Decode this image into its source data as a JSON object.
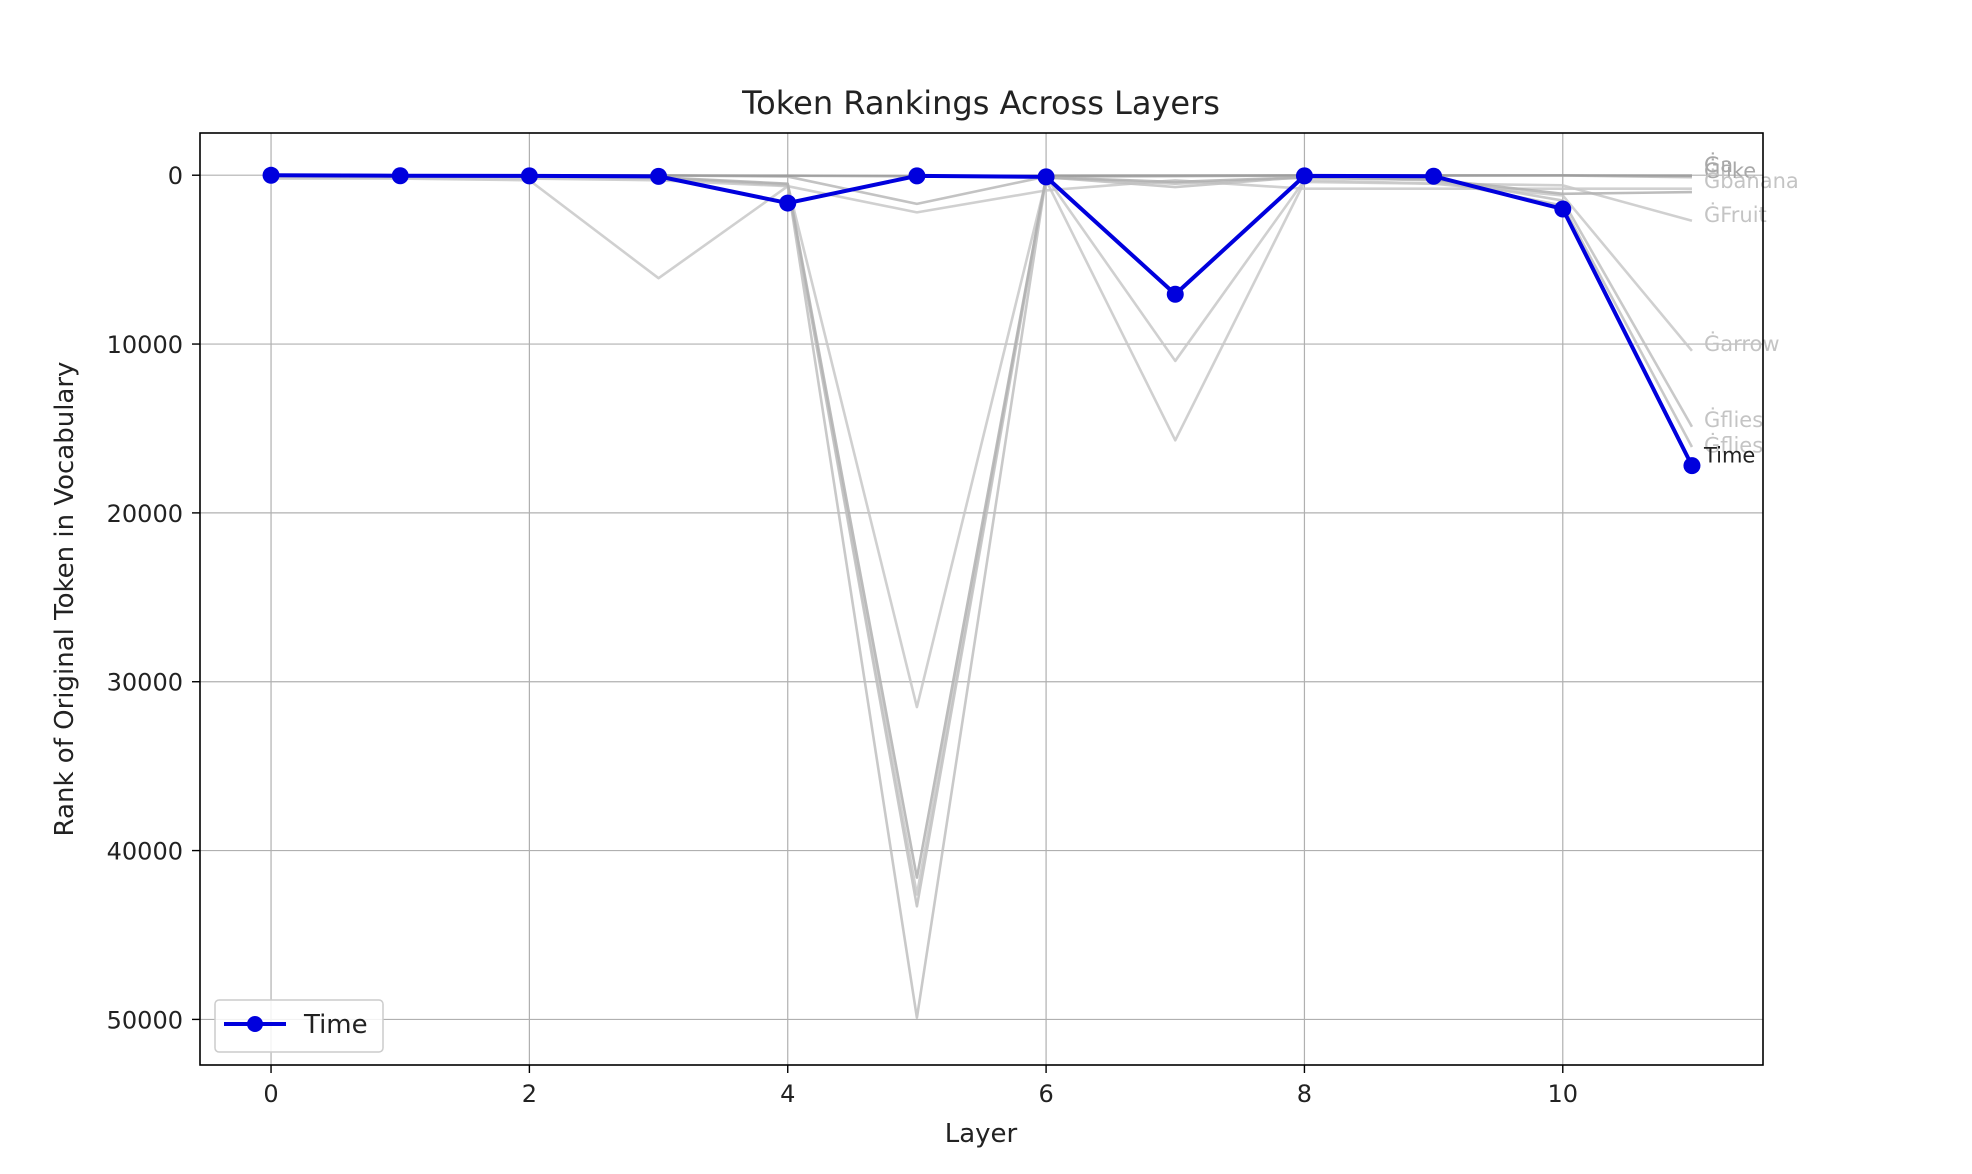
{
  "chart_data": {
    "type": "line",
    "title": "Token Rankings Across Layers",
    "xlabel": "Layer",
    "ylabel": "Rank of Original Token in Vocabulary",
    "xlim": [
      -0.55,
      11.55
    ],
    "ylim": [
      52700,
      -2500
    ],
    "y_inverted": true,
    "grid": true,
    "legend_position": "lower-left",
    "x_ticks": [
      0,
      2,
      4,
      6,
      8,
      10
    ],
    "y_ticks": [
      0,
      10000,
      20000,
      30000,
      40000,
      50000
    ],
    "x": [
      0,
      1,
      2,
      3,
      4,
      5,
      6,
      7,
      8,
      9,
      10,
      11
    ],
    "highlight": {
      "name": "Time",
      "color": "#0000dd",
      "values": [
        5,
        30,
        40,
        70,
        1650,
        40,
        100,
        7050,
        40,
        60,
        2000,
        17200
      ]
    },
    "series": [
      {
        "name": "Ġlike",
        "color": "#b8b8b8",
        "values": [
          5,
          5,
          5,
          10,
          80,
          1700,
          80,
          60,
          20,
          20,
          15,
          120
        ]
      },
      {
        "name": "Ġa",
        "color": "#9a9a9a",
        "values": [
          5,
          5,
          5,
          10,
          30,
          60,
          30,
          20,
          10,
          10,
          10,
          20
        ]
      },
      {
        "name": "Ġbanana",
        "color": "#c8c8c8",
        "values": [
          200,
          200,
          300,
          6100,
          650,
          2200,
          900,
          300,
          800,
          800,
          800,
          800
        ]
      },
      {
        "name": "ĠFruit",
        "color": "#c8c8c8",
        "values": [
          100,
          150,
          200,
          300,
          650,
          42600,
          100,
          11000,
          300,
          500,
          600,
          2700
        ]
      },
      {
        "name": "Ġarrow",
        "color": "#c8c8c8",
        "values": [
          80,
          80,
          100,
          200,
          550,
          31500,
          300,
          15700,
          400,
          500,
          1200,
          10400
        ]
      },
      {
        "name": "Ġflies",
        "color": "#c0c0c0",
        "values": [
          50,
          50,
          80,
          150,
          600,
          43300,
          120,
          700,
          100,
          200,
          1500,
          14900
        ]
      },
      {
        "name": "Ġflies",
        "color": "#c0c0c0",
        "values": [
          60,
          60,
          100,
          180,
          550,
          49900,
          150,
          500,
          150,
          300,
          1800,
          16100
        ]
      },
      {
        "name": "Ġlike",
        "color": "#b0b0b0",
        "values": [
          30,
          30,
          60,
          120,
          500,
          41600,
          130,
          400,
          120,
          250,
          1100,
          1000
        ]
      }
    ],
    "end_labels": [
      {
        "text": "Ġa",
        "color": "#a8a8a8",
        "value": -600
      },
      {
        "text": "Ġlike",
        "color": "#a8a8a8",
        "value": -250
      },
      {
        "text": "Ġbanana",
        "color": "#c4c4c4",
        "value": 350
      },
      {
        "text": "ĠFruit",
        "color": "#c4c4c4",
        "value": 2350
      },
      {
        "text": "Ġarrow",
        "color": "#c4c4c4",
        "value": 10000
      },
      {
        "text": "Ġflies",
        "color": "#c4c4c4",
        "value": 14500
      },
      {
        "text": "Ġflies",
        "color": "#c4c4c4",
        "value": 16000
      },
      {
        "text": "Time",
        "color": "#222222",
        "value": 16600
      }
    ]
  }
}
